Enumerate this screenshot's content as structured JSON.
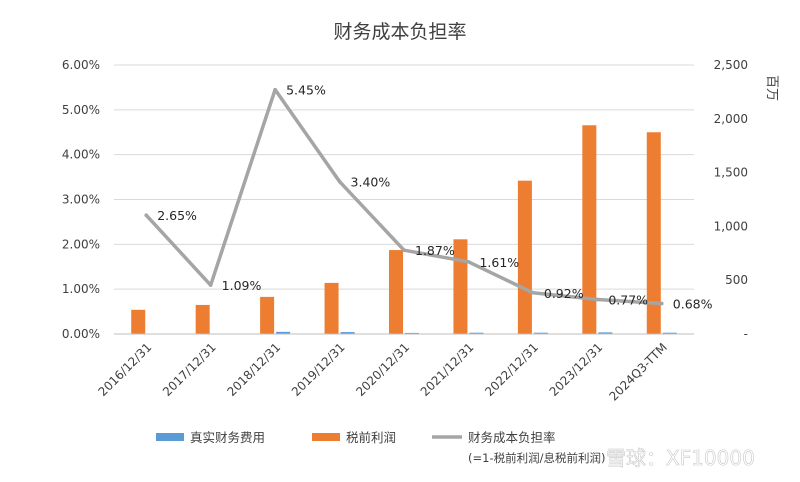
{
  "chart_data": {
    "type": "bar",
    "title": "财务成本负担率",
    "categories": [
      "2016/12/31",
      "2017/12/31",
      "2018/12/31",
      "2019/12/31",
      "2020/12/31",
      "2021/12/31",
      "2022/12/31",
      "2023/12/31",
      "2024Q3-TTM"
    ],
    "series": [
      {
        "name": "真实财务费用",
        "type": "bar",
        "axis": "right",
        "color": "#5B9BD5",
        "values": [
          0,
          0,
          20,
          18,
          10,
          12,
          12,
          15,
          12
        ]
      },
      {
        "name": "税前利润",
        "type": "bar",
        "axis": "right",
        "color": "#ED7D31",
        "values": [
          225,
          270,
          345,
          475,
          780,
          880,
          1425,
          1940,
          1875
        ]
      },
      {
        "name": "财务成本负担率",
        "type": "line",
        "axis": "left",
        "color": "#A5A5A5",
        "values": [
          2.65,
          1.09,
          5.45,
          3.4,
          1.87,
          1.61,
          0.92,
          0.77,
          0.68
        ],
        "labels": [
          "2.65%",
          "1.09%",
          "5.45%",
          "3.40%",
          "1.87%",
          "1.61%",
          "0.92%",
          "0.77%",
          "0.68%"
        ]
      }
    ],
    "y_left": {
      "min": 0,
      "max": 6,
      "ticks": [
        "0.00%",
        "1.00%",
        "2.00%",
        "3.00%",
        "4.00%",
        "5.00%",
        "6.00%"
      ]
    },
    "y_right": {
      "min": 0,
      "max": 2500,
      "ticks": [
        "-",
        "500",
        "1,000",
        "1,500",
        "2,000",
        "2,500"
      ],
      "label": "百万"
    },
    "legend_position": "bottom",
    "legend_note": "(=1-税前利润/息税前利润)",
    "grid": true
  },
  "watermark": "雪球：XF10000"
}
